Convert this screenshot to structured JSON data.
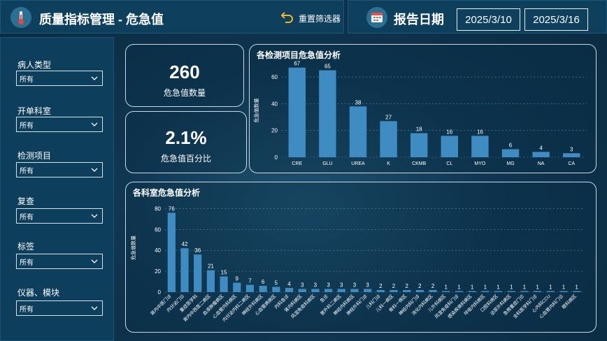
{
  "header": {
    "title": "质量指标管理 - 危急值",
    "reset_label": "重置筛选器",
    "report_date_label": "报告日期",
    "date_start": "2025/3/10",
    "date_end": "2025/3/16"
  },
  "filters": [
    {
      "label": "病人类型",
      "value": "所有"
    },
    {
      "label": "开单科室",
      "value": "所有"
    },
    {
      "label": "检测项目",
      "value": "所有"
    },
    {
      "label": "复查",
      "value": "所有"
    },
    {
      "label": "标签",
      "value": "所有"
    },
    {
      "label": "仪器、模块",
      "value": "所有"
    }
  ],
  "kpis": {
    "count_value": "260",
    "count_label": "危急值数量",
    "percent_value": "2.1%",
    "percent_label": "危急值百分比"
  },
  "chart_data": [
    {
      "type": "bar",
      "title": "各检测项目危急值分析",
      "ylabel": "危急值数量",
      "categories": [
        "CRE",
        "GLU",
        "UREA",
        "K",
        "CKMB",
        "CL",
        "MYO",
        "MG",
        "NA",
        "CA"
      ],
      "values": [
        67,
        65,
        38,
        27,
        18,
        16,
        16,
        6,
        4,
        3
      ],
      "yticks": [
        0,
        20,
        40,
        60
      ],
      "ylim": [
        0,
        70
      ],
      "grid": true,
      "color": "#3f8cc3"
    },
    {
      "type": "bar",
      "title": "各科室危急值分析",
      "ylabel": "危急值数量",
      "categories": [
        "肾内中医门诊",
        "内分泌门诊",
        "重症医学科",
        "肾内中西医二病区",
        "血液肿瘤病区",
        "心血管内科病区",
        "内分泌内科二病区",
        "神经外科病区",
        "心血管病病区",
        "内科急诊",
        "肾内科病区",
        "风湿免疫科病区",
        "急诊",
        "普外科二病区",
        "神经内科病区",
        "神经外科门诊",
        "儿科门诊",
        "儿科一病区",
        "骨科一病区",
        "神经内科门诊",
        "消化内科病区",
        "儿外科病区",
        "风湿免疫科门诊",
        "感染疾病科病区",
        "呼吸内科病区",
        "口腔科病区",
        "泌尿外科病区",
        "急救重症门诊",
        "全科医学科门诊",
        "心内科CCU",
        "心血管内科门诊",
        "眼科病区"
      ],
      "values": [
        76,
        42,
        36,
        21,
        15,
        9,
        7,
        6,
        5,
        4,
        3,
        3,
        3,
        3,
        3,
        3,
        2,
        2,
        2,
        2,
        2,
        1,
        1,
        1,
        1,
        1,
        1,
        1,
        1,
        1,
        1,
        1
      ],
      "yticks": [
        0,
        20,
        40,
        60,
        80
      ],
      "ylim": [
        0,
        85
      ],
      "grid": true,
      "color": "#3f8cc3"
    }
  ]
}
